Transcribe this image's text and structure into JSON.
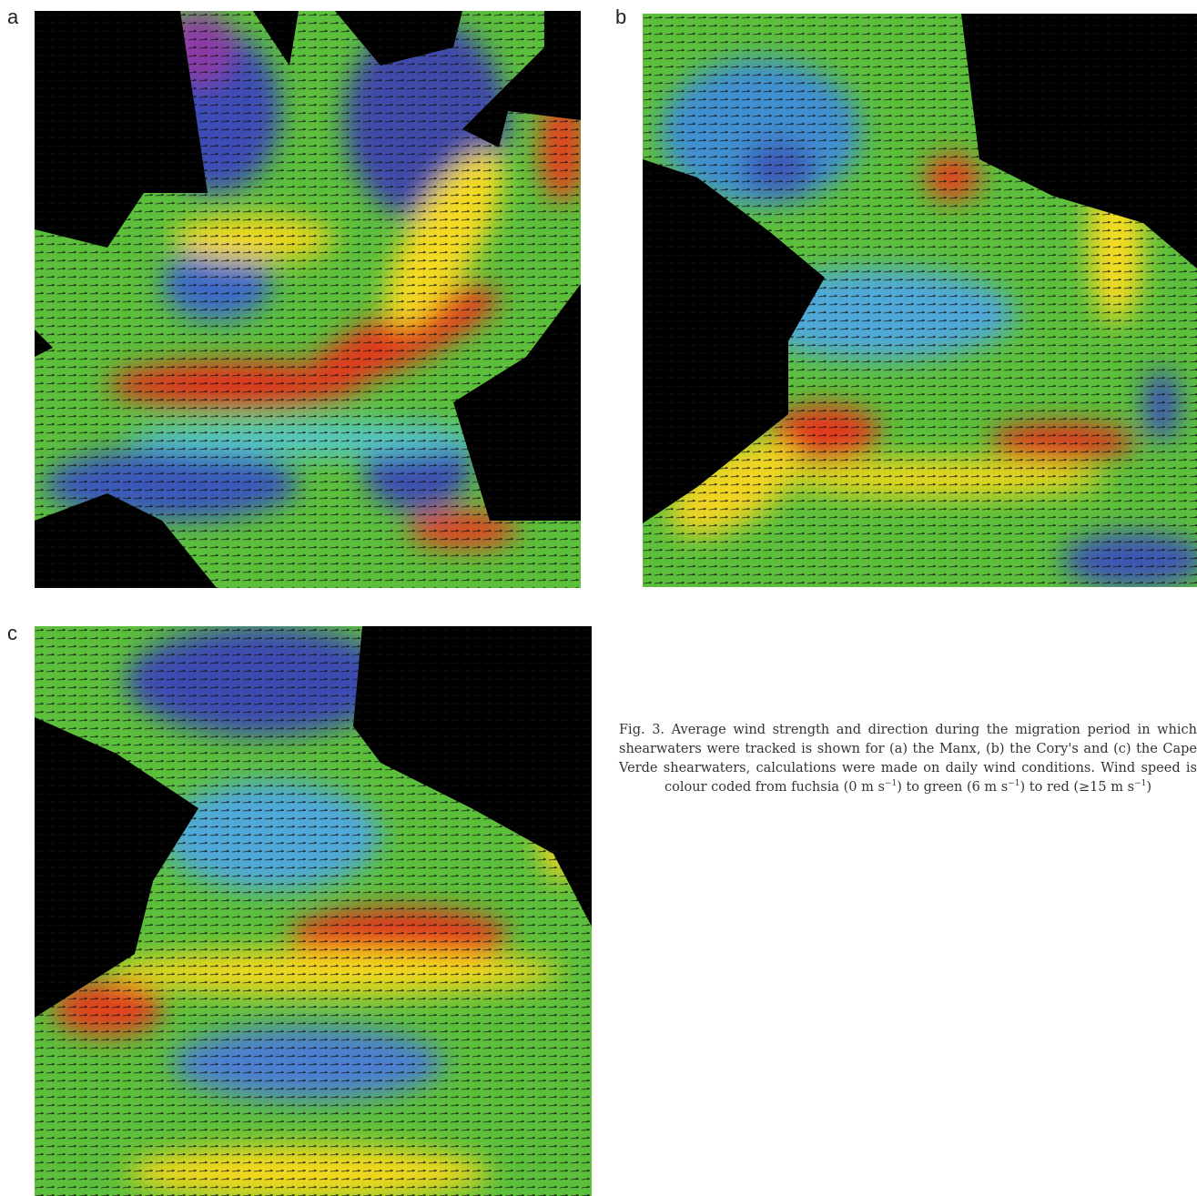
{
  "panels": [
    {
      "label": "a"
    },
    {
      "label": "b"
    },
    {
      "label": "c"
    }
  ],
  "caption": [
    "Fig. 3. Average wind strength and direction during the migration period in which shearwaters were tracked is shown for (a) the Manx, (b) the Cory's and (c) the Cape Verde shearwaters, calculations were made on daily wind conditions. Wind speed is colour coded from fuchsia (0 m s",
    "−1",
    ") to green (6 m s",
    "−1",
    ") to red (≥15 m s",
    "−1",
    ")"
  ]
}
